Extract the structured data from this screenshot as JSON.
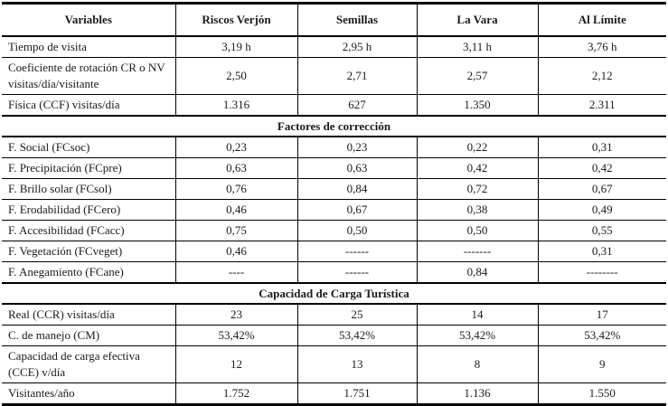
{
  "colors": {
    "text": "#1a1a1a",
    "border": "#000000",
    "background": "#ffffff"
  },
  "table": {
    "columns": [
      "Variables",
      "Riscos Verjón",
      "Semillas",
      "La Vara",
      "Al Límite"
    ],
    "sections": [
      {
        "header": null,
        "rows": [
          {
            "label": "Tiempo de visita",
            "values": [
              "3,19 h",
              "2,95 h",
              "3,11 h",
              "3,76 h"
            ]
          },
          {
            "label": "Coeficiente de rotación CR o NV visitas/día/visitante",
            "values": [
              "2,50",
              "2,71",
              "2,57",
              "2,12"
            ]
          },
          {
            "label": "Física (CCF) visitas/día",
            "values": [
              "1.316",
              "627",
              "1.350",
              "2.311"
            ]
          }
        ]
      },
      {
        "header": "Factores de corrección",
        "rows": [
          {
            "label": "F. Social (FCsoc)",
            "values": [
              "0,23",
              "0,23",
              "0,22",
              "0,31"
            ]
          },
          {
            "label": "F. Precipitación (FCpre)",
            "values": [
              "0,63",
              "0,63",
              "0,42",
              "0,42"
            ]
          },
          {
            "label": "F. Brillo solar (FCsol)",
            "values": [
              "0,76",
              "0,84",
              "0,72",
              "0,67"
            ]
          },
          {
            "label": "F. Erodabilidad (FCero)",
            "values": [
              "0,46",
              "0,67",
              "0,38",
              "0,49"
            ]
          },
          {
            "label": "F. Accesibilidad (FCacc)",
            "values": [
              "0,75",
              "0,50",
              "0,50",
              "0,55"
            ]
          },
          {
            "label": "F. Vegetación (FCveget)",
            "values": [
              "0,46",
              "------",
              "-------",
              "0,31"
            ]
          },
          {
            "label": "F. Anegamiento (FCane)",
            "values": [
              "----",
              "------",
              "0,84",
              "--------"
            ]
          }
        ]
      },
      {
        "header": "Capacidad de Carga Turística",
        "rows": [
          {
            "label": "Real (CCR) visitas/día",
            "values": [
              "23",
              "25",
              "14",
              "17"
            ]
          },
          {
            "label": "C. de manejo (CM)",
            "values": [
              "53,42%",
              "53,42%",
              "53,42%",
              "53,42%"
            ]
          },
          {
            "label": "Capacidad de carga efectiva (CCE) v/día",
            "values": [
              "12",
              "13",
              "8",
              "9"
            ]
          },
          {
            "label": "Visitantes/año",
            "values": [
              "1.752",
              "1.751",
              "1.136",
              "1.550"
            ]
          }
        ]
      }
    ]
  }
}
